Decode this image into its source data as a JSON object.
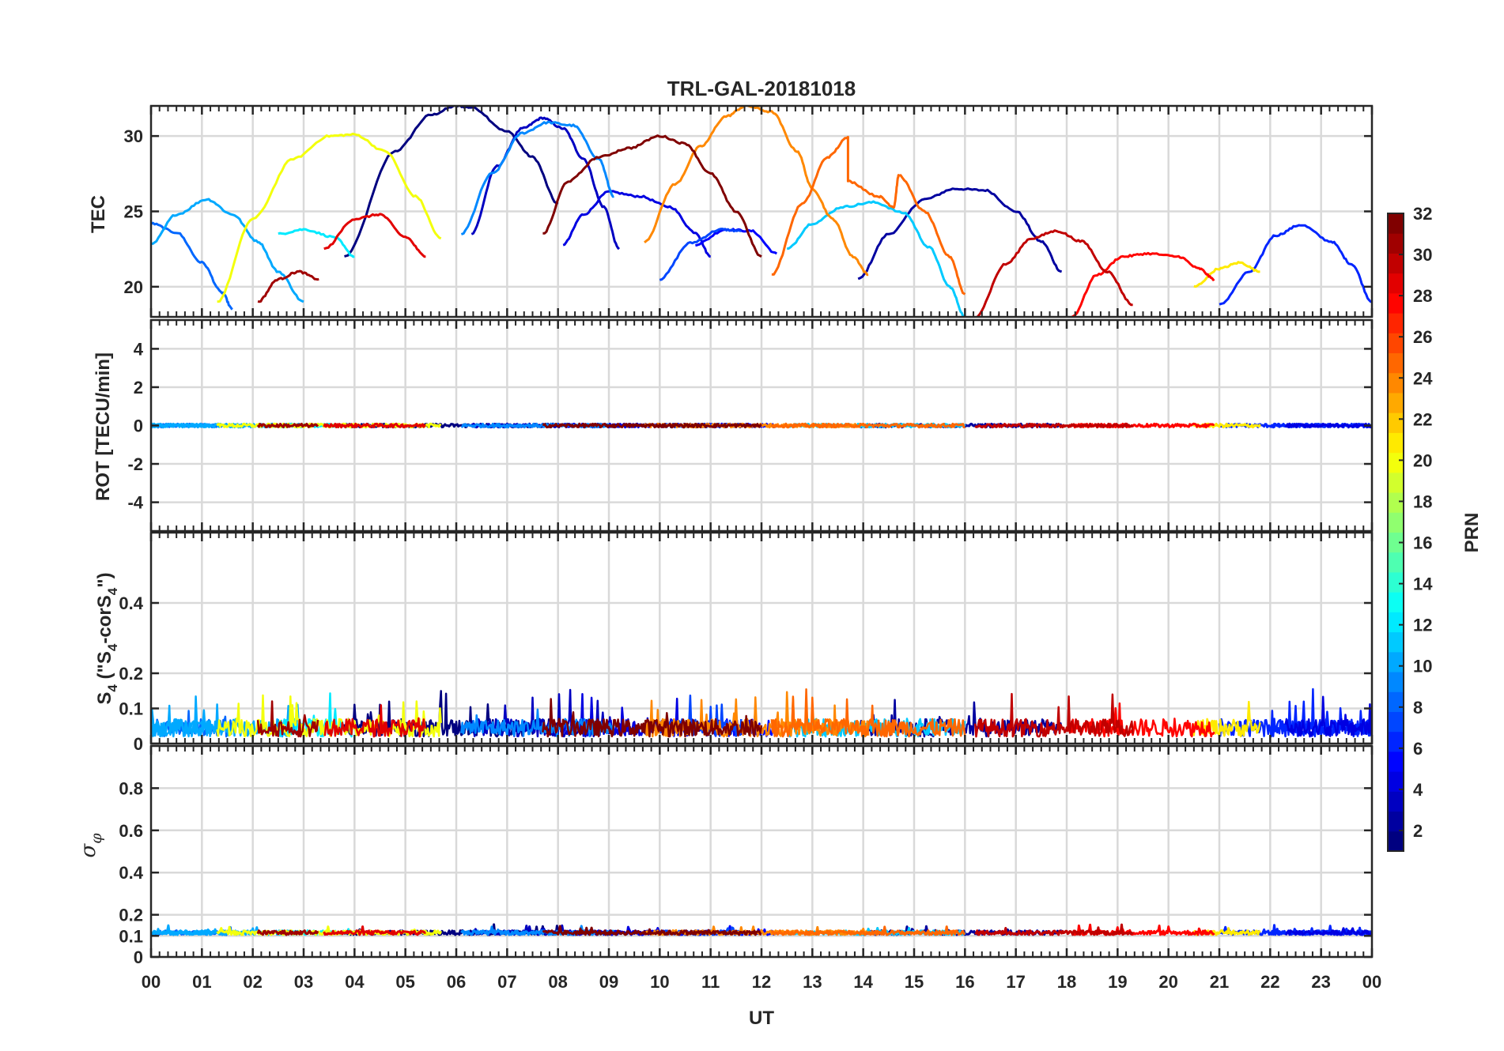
{
  "chart_data": [
    {
      "type": "line",
      "id": "tec",
      "title": "TRL-GAL-20181018",
      "ylabel": "TEC",
      "ylim": [
        18,
        32
      ],
      "yticks": [
        20,
        25,
        30
      ],
      "xlim": [
        0,
        24
      ],
      "series": [
        {
          "prn": 1,
          "x": [
            3.8,
            4.8,
            5.5,
            6.0,
            6.3,
            7.0,
            7.5,
            8.0
          ],
          "y": [
            22.0,
            29.0,
            31.4,
            32.0,
            31.9,
            30.3,
            28.6,
            25.5
          ]
        },
        {
          "prn": 2,
          "x": [
            13.9,
            14.5,
            15.2,
            15.8,
            16.4,
            17.0,
            17.5,
            17.9
          ],
          "y": [
            20.5,
            23.5,
            25.8,
            26.5,
            26.4,
            25.0,
            23.0,
            21.0
          ]
        },
        {
          "prn": 3,
          "x": [
            6.3,
            6.8,
            7.3,
            7.7,
            8.1,
            8.5,
            8.9,
            9.2
          ],
          "y": [
            23.5,
            28.0,
            30.5,
            31.2,
            30.5,
            28.5,
            25.3,
            22.5
          ]
        },
        {
          "prn": 4,
          "x": [
            8.1,
            8.5,
            9.0,
            9.6,
            10.2,
            10.7,
            11.0
          ],
          "y": [
            22.8,
            24.8,
            26.3,
            26.0,
            25.3,
            23.6,
            22.0
          ]
        },
        {
          "prn": 5,
          "x": [
            10.7,
            11.3,
            11.8,
            12.3
          ],
          "y": [
            22.8,
            23.8,
            23.7,
            22.2
          ]
        },
        {
          "prn": 6,
          "x": [
            21.0,
            21.6,
            22.1,
            22.6,
            23.2,
            23.6,
            24.0
          ],
          "y": [
            18.8,
            21.0,
            23.4,
            24.1,
            23.0,
            21.5,
            19.0
          ]
        },
        {
          "prn": 7,
          "x": [
            10.0,
            10.6,
            11.2,
            11.6
          ],
          "y": [
            20.5,
            22.9,
            23.8,
            23.7
          ]
        },
        {
          "prn": 8,
          "x": [
            0.0,
            0.5,
            1.0,
            1.4,
            1.6
          ],
          "y": [
            24.2,
            23.6,
            21.6,
            19.6,
            18.5
          ]
        },
        {
          "prn": 9,
          "x": [
            6.1,
            6.7,
            7.3,
            7.8,
            8.3,
            8.8,
            9.1
          ],
          "y": [
            23.5,
            27.5,
            30.2,
            30.9,
            30.7,
            28.5,
            26.0
          ]
        },
        {
          "prn": 10,
          "x": [
            0.0,
            0.5,
            1.1,
            1.6,
            2.1,
            2.5,
            3.0
          ],
          "y": [
            22.8,
            24.8,
            25.8,
            24.8,
            23.0,
            21.0,
            19.0
          ]
        },
        {
          "prn": 11,
          "x": [
            12.5,
            13.0,
            13.6,
            14.2,
            14.8,
            15.3,
            15.7,
            16.0
          ],
          "y": [
            22.5,
            24.2,
            25.3,
            25.6,
            24.9,
            22.6,
            20.0,
            18.0
          ]
        },
        {
          "prn": 12,
          "x": [
            2.5,
            3.0,
            3.6,
            4.0
          ],
          "y": [
            23.5,
            23.8,
            23.3,
            22.0
          ]
        },
        {
          "prn": 20,
          "x": [
            1.3,
            2.0,
            2.8,
            3.5,
            4.0,
            4.6,
            5.2,
            5.7
          ],
          "y": [
            19.0,
            24.5,
            28.5,
            30.0,
            30.1,
            29.0,
            26.0,
            23.2
          ]
        },
        {
          "prn": 21,
          "x": [
            20.5,
            21.0,
            21.4,
            21.8
          ],
          "y": [
            20.0,
            21.2,
            21.6,
            21.0
          ]
        },
        {
          "prn": 24,
          "x": [
            9.7,
            10.3,
            10.8,
            11.3,
            11.7,
            12.2,
            12.7,
            13.0,
            13.4,
            13.8,
            14.1
          ],
          "y": [
            23.0,
            26.8,
            29.3,
            31.3,
            32.0,
            31.6,
            29.0,
            26.5,
            24.5,
            22.0,
            20.8
          ]
        },
        {
          "prn": 25,
          "x": [
            12.2,
            12.8,
            13.3,
            13.7,
            13.7,
            14.3,
            14.6,
            14.7,
            15.2,
            15.7,
            16.0
          ],
          "y": [
            20.8,
            25.5,
            28.6,
            29.9,
            27.0,
            26.0,
            25.3,
            27.4,
            25.0,
            22.0,
            19.5
          ]
        },
        {
          "prn": 28,
          "x": [
            18.1,
            18.6,
            19.1,
            19.6,
            20.2,
            20.6,
            20.9
          ],
          "y": [
            18.0,
            20.8,
            22.0,
            22.2,
            22.0,
            21.2,
            20.5
          ]
        },
        {
          "prn": 29,
          "x": [
            3.4,
            4.0,
            4.5,
            5.0,
            5.4
          ],
          "y": [
            22.5,
            24.5,
            24.8,
            23.3,
            22.0
          ]
        },
        {
          "prn": 30,
          "x": [
            16.2,
            16.8,
            17.3,
            17.8,
            18.3,
            18.8,
            19.3
          ],
          "y": [
            18.0,
            21.5,
            23.2,
            23.7,
            23.0,
            21.0,
            18.8
          ]
        },
        {
          "prn": 31,
          "x": [
            2.1,
            2.5,
            2.9,
            3.3
          ],
          "y": [
            19.0,
            20.5,
            21.0,
            20.5
          ]
        },
        {
          "prn": 32,
          "x": [
            7.7,
            8.2,
            8.8,
            9.4,
            10.0,
            10.5,
            11.0,
            11.5,
            12.0
          ],
          "y": [
            23.5,
            27.0,
            28.6,
            29.2,
            30.0,
            29.5,
            27.5,
            25.0,
            22.0
          ]
        }
      ]
    },
    {
      "type": "line",
      "id": "rot",
      "ylabel": "ROT [TECU/min]",
      "ylim": [
        -5.5,
        5.5
      ],
      "yticks": [
        -4,
        -2,
        0,
        2,
        4
      ],
      "xlim": [
        0,
        24
      ],
      "note": "ROT near 0 (within about ±0.2) for all PRNs"
    },
    {
      "type": "line",
      "id": "s4",
      "ylabel": "S_4 (\"S_4-corS_4\")",
      "ylim": [
        0,
        0.6
      ],
      "yticks": [
        0,
        0.1,
        0.2,
        0.4
      ],
      "xlim": [
        0,
        24
      ],
      "note": "S4 mostly 0.02–0.1, peaks up to ~0.16"
    },
    {
      "type": "line",
      "id": "sigma",
      "ylabel": "σ φ",
      "ylim": [
        0,
        1
      ],
      "yticks": [
        0,
        0.1,
        0.2,
        0.4,
        0.6,
        0.8
      ],
      "xlim": [
        0,
        24
      ],
      "note": "σφ around 0.1–0.15 throughout"
    }
  ],
  "xaxis": {
    "label": "UT",
    "ticks": [
      "00",
      "01",
      "02",
      "03",
      "04",
      "05",
      "06",
      "07",
      "08",
      "09",
      "10",
      "11",
      "12",
      "13",
      "14",
      "15",
      "16",
      "17",
      "18",
      "19",
      "20",
      "21",
      "22",
      "23",
      "00"
    ]
  },
  "colorbar": {
    "label": "PRN",
    "range": [
      1,
      32
    ],
    "ticks": [
      "2",
      "4",
      "6",
      "8",
      "10",
      "12",
      "14",
      "16",
      "18",
      "20",
      "22",
      "24",
      "26",
      "28",
      "30",
      "32"
    ],
    "colormap": "jet"
  }
}
